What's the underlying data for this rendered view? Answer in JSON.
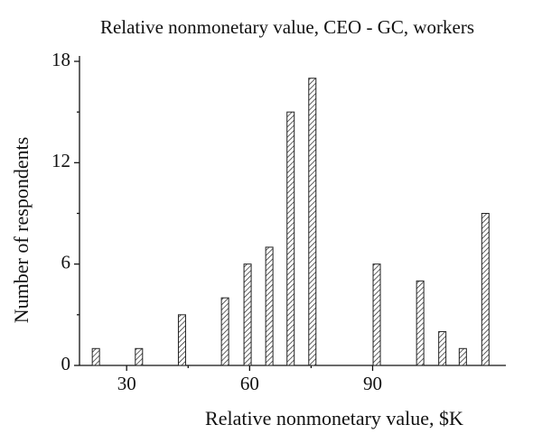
{
  "chart_data": {
    "type": "bar",
    "title": "Relative nonmonetary value, CEO - GC, workers",
    "x_label": "Relative nonmonetary value, $K",
    "y_label": "Number of respondents",
    "x": [
      22.5,
      33,
      43.5,
      54,
      59.5,
      64.8,
      70,
      75.3,
      91,
      101.6,
      107,
      112,
      117.5
    ],
    "values": [
      1,
      1,
      3,
      4,
      6,
      7,
      15,
      17,
      6,
      5,
      2,
      1,
      9
    ],
    "color": "#222222",
    "hatch": true,
    "xlim": [
      18.5,
      122.5
    ],
    "xticks": [
      30,
      60,
      90
    ],
    "xminorticks": [
      45,
      75
    ],
    "ylim": [
      0,
      18
    ],
    "yticks": [
      0,
      6,
      12,
      18
    ],
    "yminorticks": [
      3,
      9,
      15
    ],
    "grid": false
  }
}
